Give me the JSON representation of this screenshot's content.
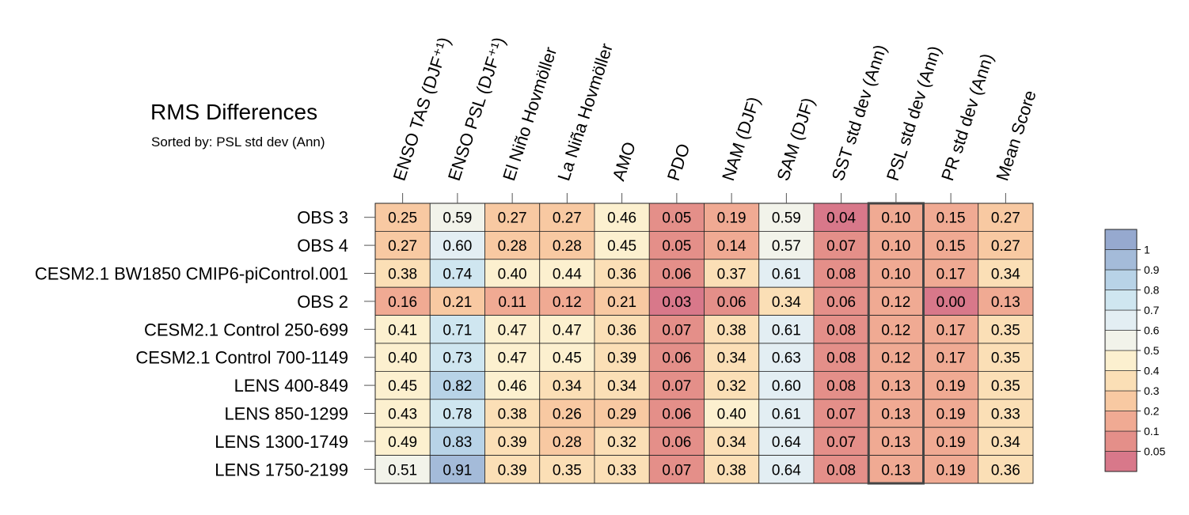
{
  "title": "RMS Differences",
  "subtitle": "Sorted by: PSL std dev (Ann)",
  "chart_data": {
    "type": "heatmap",
    "columns": [
      "ENSO TAS (DJF⁺¹)",
      "ENSO PSL (DJF⁺¹)",
      "El Niño Hovmöller",
      "La Niña Hovmöller",
      "AMO",
      "PDO",
      "NAM (DJF)",
      "SAM (DJF)",
      "SST std dev (Ann)",
      "PSL std dev (Ann)",
      "PR std dev (Ann)",
      "Mean Score"
    ],
    "rows": [
      "OBS 3",
      "OBS 4",
      "CESM2.1 BW1850 CMIP6-piControl.001",
      "OBS 2",
      "CESM2.1 Control 250-699",
      "CESM2.1 Control 700-1149",
      "LENS 400-849",
      "LENS 850-1299",
      "LENS 1300-1749",
      "LENS 1750-2199"
    ],
    "values": [
      [
        0.25,
        0.59,
        0.27,
        0.27,
        0.46,
        0.05,
        0.19,
        0.59,
        0.04,
        0.1,
        0.15,
        0.27
      ],
      [
        0.27,
        0.6,
        0.28,
        0.28,
        0.45,
        0.05,
        0.14,
        0.57,
        0.07,
        0.1,
        0.15,
        0.27
      ],
      [
        0.38,
        0.74,
        0.4,
        0.44,
        0.36,
        0.06,
        0.37,
        0.61,
        0.08,
        0.1,
        0.17,
        0.34
      ],
      [
        0.16,
        0.21,
        0.11,
        0.12,
        0.21,
        0.03,
        0.06,
        0.34,
        0.06,
        0.12,
        0.0,
        0.13
      ],
      [
        0.41,
        0.71,
        0.47,
        0.47,
        0.36,
        0.07,
        0.38,
        0.61,
        0.08,
        0.12,
        0.17,
        0.35
      ],
      [
        0.4,
        0.73,
        0.47,
        0.45,
        0.39,
        0.06,
        0.34,
        0.63,
        0.08,
        0.12,
        0.17,
        0.35
      ],
      [
        0.45,
        0.82,
        0.46,
        0.34,
        0.34,
        0.07,
        0.32,
        0.6,
        0.08,
        0.13,
        0.19,
        0.35
      ],
      [
        0.43,
        0.78,
        0.38,
        0.26,
        0.29,
        0.06,
        0.4,
        0.61,
        0.07,
        0.13,
        0.19,
        0.33
      ],
      [
        0.49,
        0.83,
        0.39,
        0.28,
        0.32,
        0.06,
        0.34,
        0.64,
        0.07,
        0.13,
        0.19,
        0.34
      ],
      [
        0.51,
        0.91,
        0.39,
        0.35,
        0.33,
        0.07,
        0.38,
        0.64,
        0.08,
        0.13,
        0.19,
        0.36
      ]
    ],
    "highlighted_column": "PSL std dev (Ann)",
    "colorbar": {
      "levels": [
        0.05,
        0.1,
        0.2,
        0.3,
        0.4,
        0.5,
        0.6,
        0.7,
        0.8,
        0.9,
        1
      ],
      "labels": [
        "0.05",
        "0.1",
        "0.2",
        "0.3",
        "0.4",
        "0.5",
        "0.6",
        "0.7",
        "0.8",
        "0.9",
        "1"
      ],
      "colors": [
        "#d8788a",
        "#e48f89",
        "#f0aa93",
        "#f8c9a2",
        "#fbdfb6",
        "#fcf0cf",
        "#f2f3ea",
        "#e3eef3",
        "#cfe6f0",
        "#b8d3e7",
        "#a4bbd9",
        "#96a9cf"
      ]
    }
  }
}
